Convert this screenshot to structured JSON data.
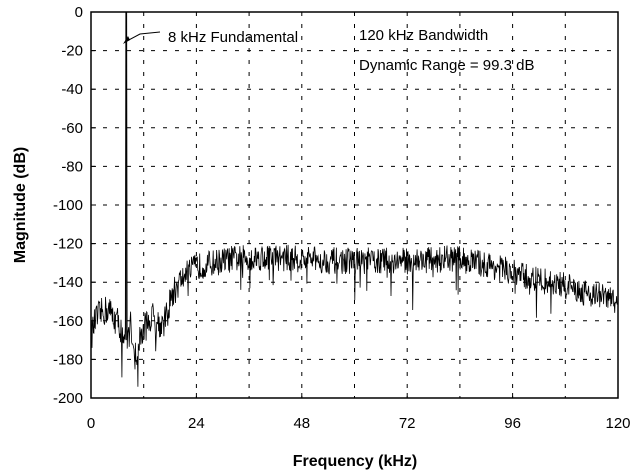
{
  "chart_data": {
    "type": "line",
    "title": "",
    "xlabel": "Frequency (kHz)",
    "ylabel": "Magnitude (dB)",
    "xlim": [
      0,
      120
    ],
    "ylim": [
      -200,
      0
    ],
    "xticks": [
      0,
      24,
      48,
      72,
      96,
      120
    ],
    "yticks": [
      0,
      -20,
      -40,
      -60,
      -80,
      -100,
      -120,
      -140,
      -160,
      -180,
      -200
    ],
    "xtick_labels": [
      "0",
      "24",
      "48",
      "72",
      "96",
      "120"
    ],
    "ytick_labels": [
      "0",
      "-20",
      "-40",
      "-60",
      "-80",
      "-100",
      "-120",
      "-140",
      "-160",
      "-180",
      "-200"
    ],
    "grid": true,
    "annotations": {
      "fundamental": "8 kHz Fundamental",
      "bandwidth": "120 kHz Bandwidth",
      "dynamic_range": "Dynamic Range = 99.3 dB"
    },
    "fundamental": {
      "x": 8,
      "y": 0
    },
    "spectrum_envelope": {
      "x": [
        0,
        1,
        2,
        3,
        4,
        5,
        6,
        7,
        7.7,
        8.3,
        9,
        10,
        10.5,
        11,
        12,
        13,
        14,
        15,
        16,
        17,
        18,
        19,
        20,
        22,
        24,
        28,
        32,
        40,
        48,
        56,
        64,
        72,
        80,
        84,
        88,
        92,
        96,
        100,
        104,
        108,
        112,
        116,
        120
      ],
      "y": [
        -168,
        -160,
        -157,
        -155,
        -154,
        -158,
        -160,
        -165,
        -170,
        -170,
        -162,
        -175,
        -185,
        -170,
        -165,
        -160,
        -158,
        -160,
        -162,
        -160,
        -150,
        -145,
        -140,
        -135,
        -132,
        -130,
        -128,
        -127,
        -128,
        -129,
        -129,
        -129,
        -128,
        -128,
        -130,
        -132,
        -135,
        -138,
        -140,
        -142,
        -145,
        -147,
        -150
      ]
    }
  }
}
